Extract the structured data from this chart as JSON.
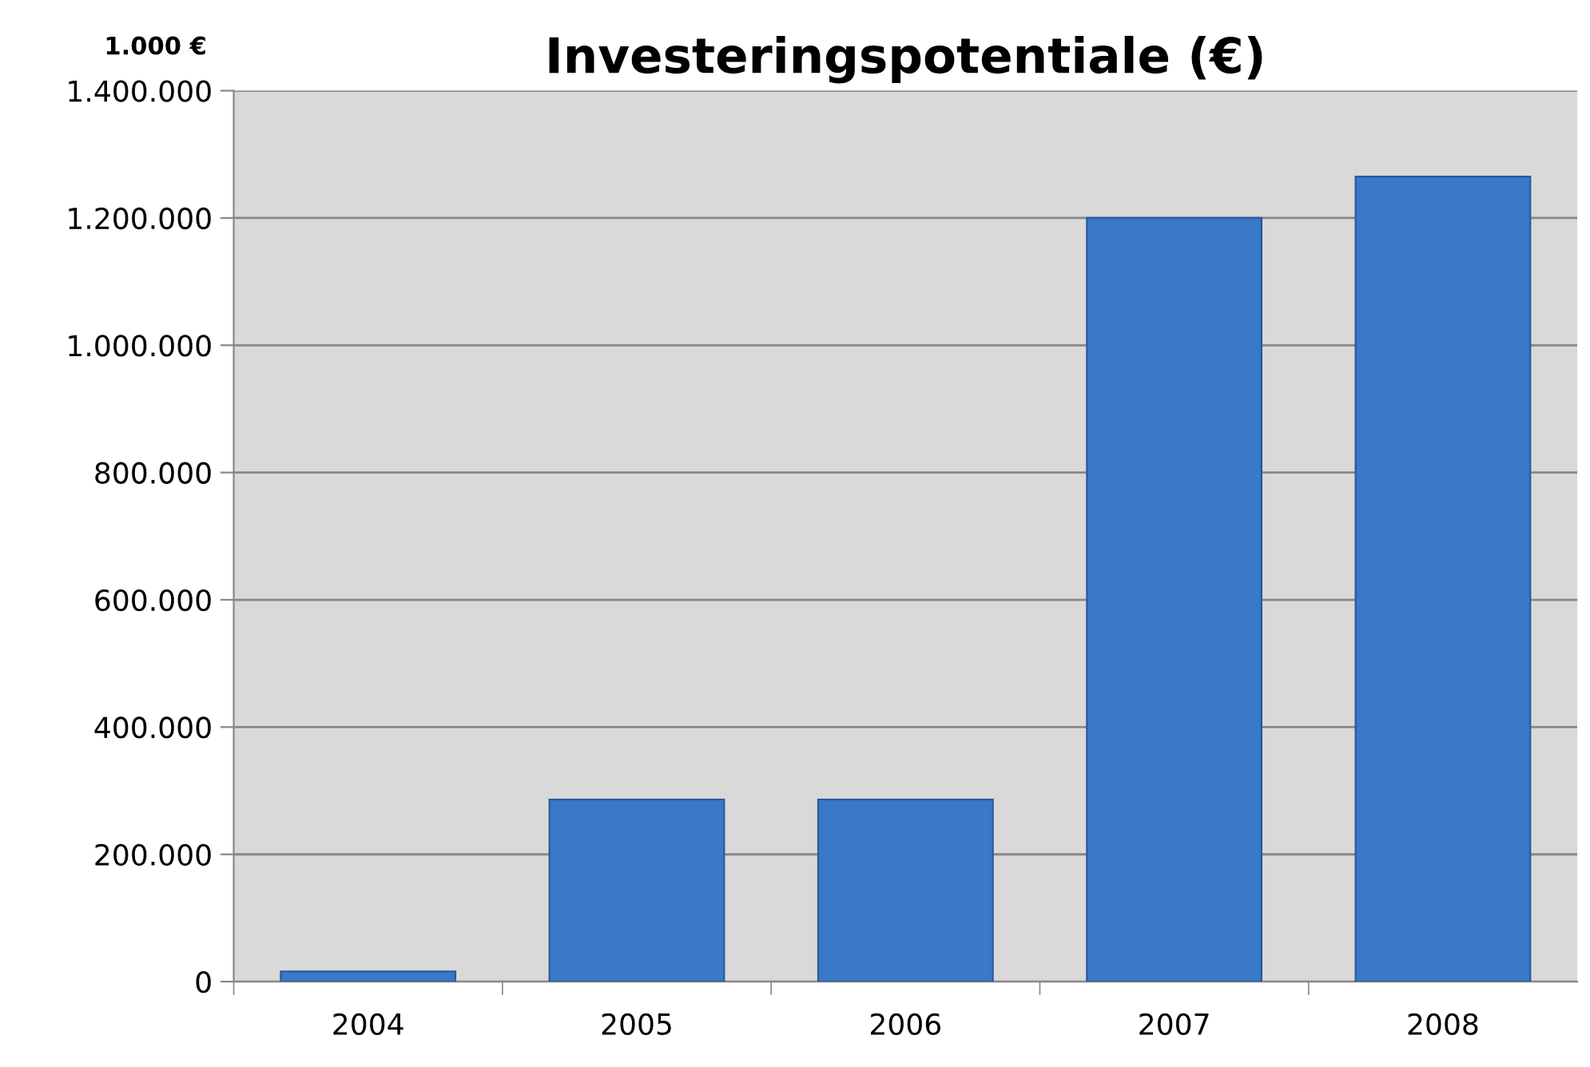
{
  "chart_data": {
    "type": "bar",
    "title": "Investeringspotentiale (€)",
    "ylabel": "1.000 €",
    "categories": [
      "2004",
      "2005",
      "2006",
      "2007",
      "2008"
    ],
    "series": [
      {
        "color": "#3a78c8",
        "values": [
          16000,
          286000,
          286000,
          1200000,
          1265000
        ]
      }
    ],
    "ylim": [
      0,
      1400000
    ],
    "yticks": [
      0,
      {
        "value": 200000,
        "label": "200.000"
      },
      {
        "value": 400000,
        "label": "400.000"
      },
      {
        "value": 600000,
        "label": "600.000"
      },
      {
        "value": 800000,
        "label": "800.000"
      },
      {
        "value": 1000000,
        "label": "1.000.000"
      },
      {
        "value": 1200000,
        "label": "1.200.000"
      },
      {
        "value": 1400000,
        "label": "1.400.000"
      }
    ],
    "grid": "y",
    "legend": false
  }
}
